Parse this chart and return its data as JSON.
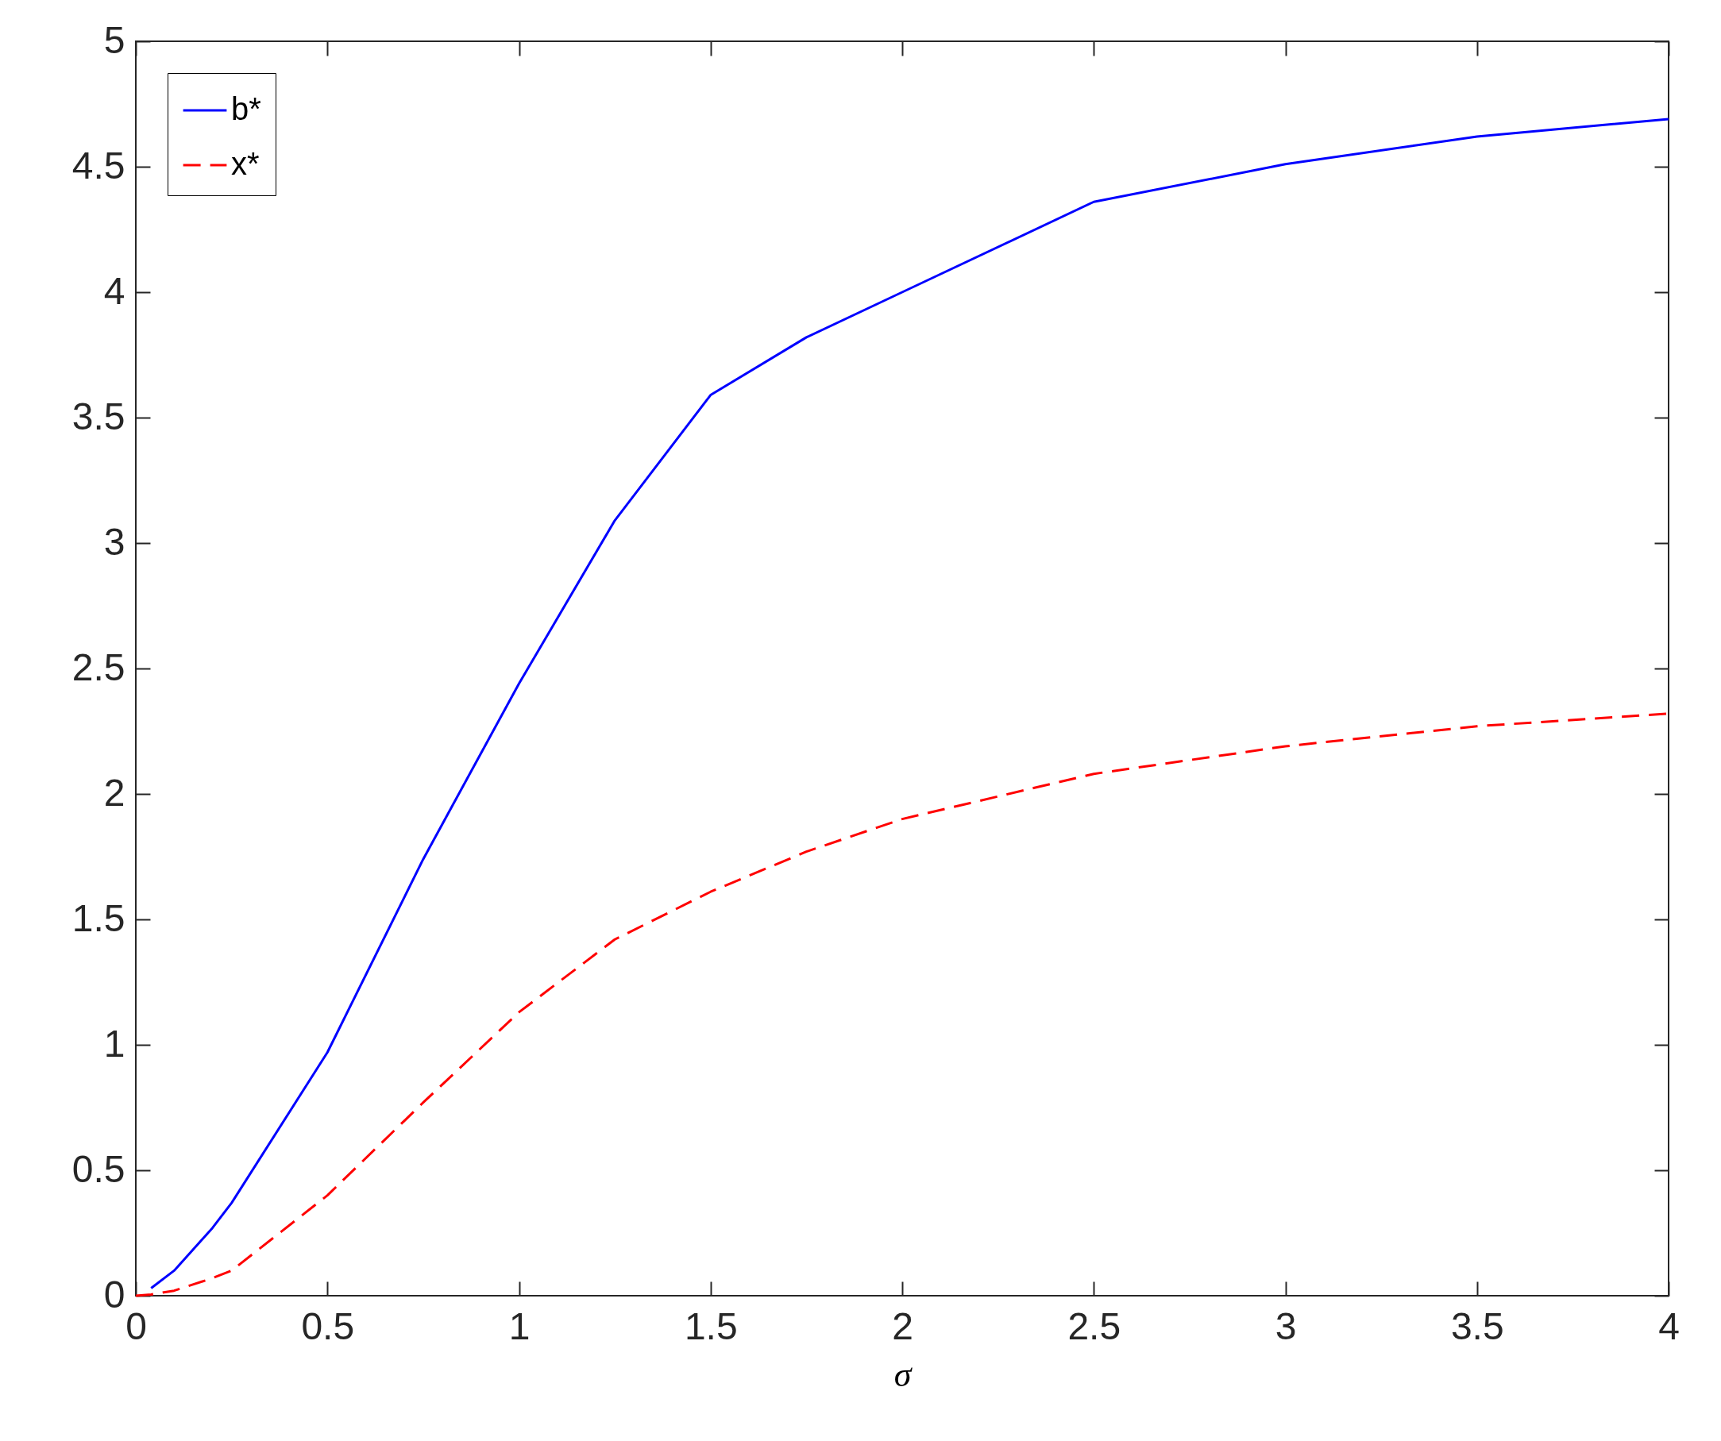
{
  "chart_data": {
    "type": "line",
    "xlabel": "σ",
    "xlim": [
      0,
      4
    ],
    "ylim": [
      0,
      5
    ],
    "xticks": [
      0,
      0.5,
      1,
      1.5,
      2,
      2.5,
      3,
      3.5,
      4
    ],
    "yticks": [
      0,
      0.5,
      1,
      1.5,
      2,
      2.5,
      3,
      3.5,
      4,
      4.5,
      5
    ],
    "grid": false,
    "legend": "top left",
    "marker": "none",
    "x": [
      0,
      0.04,
      0.1,
      0.2,
      0.25,
      0.5,
      0.75,
      1,
      1.25,
      1.5,
      1.75,
      2,
      2.5,
      3,
      3.5,
      4
    ],
    "series": [
      {
        "name": "b*",
        "color": "#0000ff",
        "line_style": "solid",
        "x": [
          0.04,
          0.1,
          0.2,
          0.25,
          0.5,
          0.75,
          1,
          1.25,
          1.5,
          1.75,
          2,
          2.5,
          3,
          3.5,
          4
        ],
        "values": [
          0.03,
          0.1,
          0.27,
          0.37,
          0.97,
          1.74,
          2.44,
          3.09,
          3.59,
          3.82,
          4.0,
          4.36,
          4.51,
          4.62,
          4.69
        ]
      },
      {
        "name": "x*",
        "color": "#ff0000",
        "line_style": "dashed",
        "values": [
          0,
          0.005,
          0.02,
          0.07,
          0.1,
          0.4,
          0.77,
          1.13,
          1.42,
          1.61,
          1.77,
          1.9,
          2.08,
          2.19,
          2.27,
          2.32
        ]
      }
    ]
  }
}
